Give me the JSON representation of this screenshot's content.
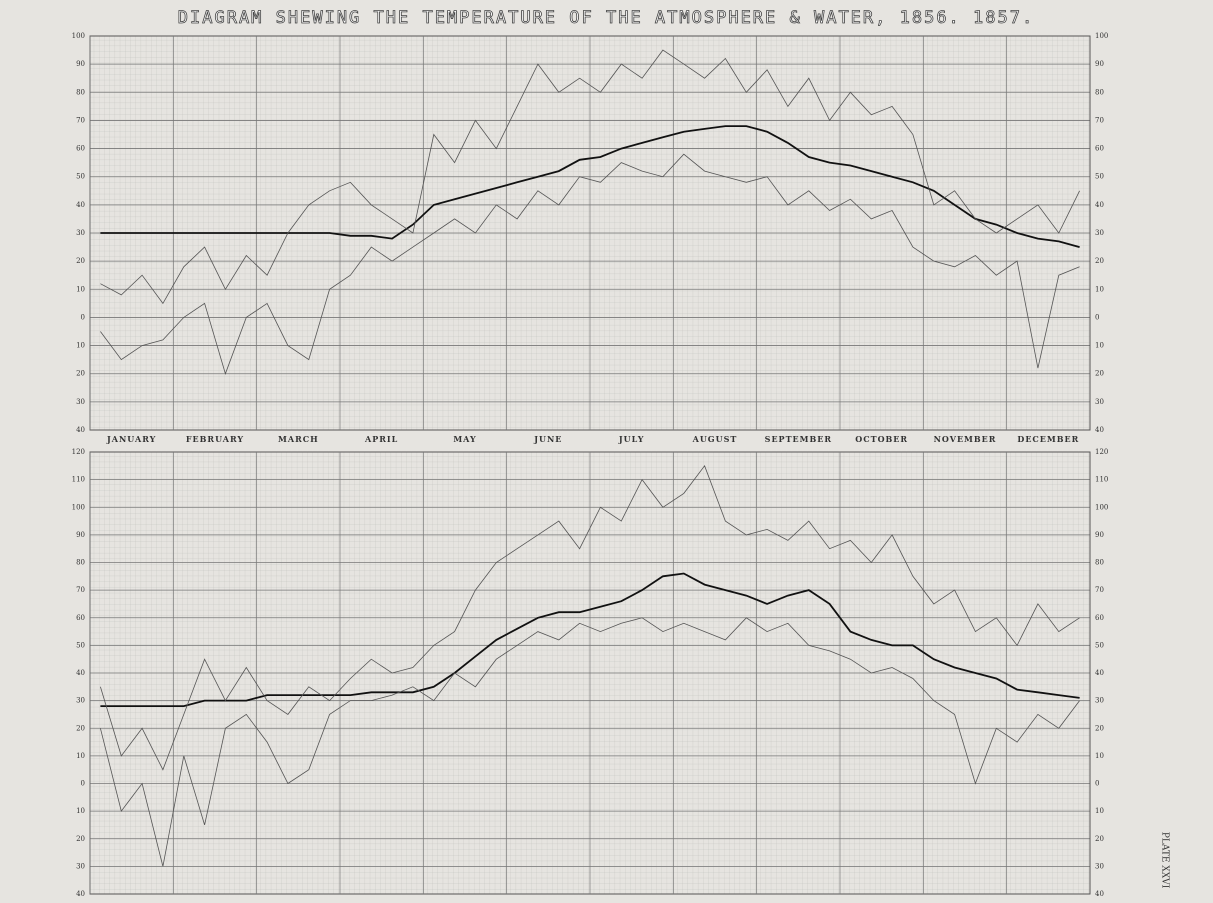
{
  "chart_data": [
    {
      "type": "line",
      "title": "DIAGRAM SHEWING THE TEMPERATURE OF THE ATMOSPHERE & WATER, 1856. 1857.",
      "categories": [
        "JANUARY",
        null,
        null,
        null,
        "FEBRUARY",
        null,
        null,
        null,
        "MARCH",
        null,
        null,
        null,
        "APRIL",
        null,
        null,
        null,
        "MAY",
        null,
        null,
        null,
        "JUNE",
        null,
        null,
        null,
        "JULY",
        null,
        null,
        null,
        "AUGUST",
        null,
        null,
        null,
        "SEPTEMBER",
        null,
        null,
        null,
        "OCTOBER",
        null,
        null,
        null,
        "NOVEMBER",
        null,
        null,
        null,
        "DECEMBER",
        null,
        null,
        null
      ],
      "ylim": [
        -40,
        100
      ],
      "yticks": [
        100,
        90,
        80,
        70,
        60,
        50,
        40,
        30,
        20,
        10,
        0,
        {
          "value": -10,
          "label": "10"
        },
        {
          "value": -20,
          "label": "20"
        },
        {
          "value": -30,
          "label": "30"
        },
        {
          "value": -40,
          "label": "40"
        }
      ],
      "grid": true,
      "series": [
        {
          "color": "#111",
          "values": [
            30,
            30,
            30,
            30,
            30,
            30,
            30,
            30,
            30,
            30,
            30,
            30,
            29,
            29,
            28,
            33,
            40,
            42,
            44,
            46,
            48,
            50,
            52,
            56,
            57,
            60,
            62,
            64,
            66,
            67,
            68,
            68,
            66,
            62,
            57,
            55,
            54,
            52,
            50,
            48,
            45,
            40,
            35,
            33,
            30,
            28,
            27,
            25
          ]
        },
        {
          "color": "#555",
          "values": [
            12,
            8,
            15,
            5,
            18,
            25,
            10,
            22,
            15,
            30,
            40,
            45,
            48,
            40,
            35,
            30,
            65,
            55,
            70,
            60,
            75,
            90,
            80,
            85,
            80,
            90,
            85,
            95,
            90,
            85,
            92,
            80,
            88,
            75,
            85,
            70,
            80,
            72,
            75,
            65,
            40,
            45,
            35,
            30,
            35,
            40,
            30,
            45
          ]
        },
        {
          "color": "#555",
          "values": [
            -5,
            -15,
            -10,
            -8,
            0,
            5,
            -20,
            0,
            5,
            -10,
            -15,
            10,
            15,
            25,
            20,
            25,
            30,
            35,
            30,
            40,
            35,
            45,
            40,
            50,
            48,
            55,
            52,
            50,
            58,
            52,
            50,
            48,
            50,
            40,
            45,
            38,
            42,
            35,
            38,
            25,
            20,
            18,
            22,
            15,
            20,
            -18,
            15,
            18
          ]
        }
      ]
    },
    {
      "type": "line",
      "annotation": "PLATE XXVI",
      "categories": [
        null,
        null,
        null,
        null,
        null,
        null,
        null,
        null,
        null,
        null,
        null,
        null,
        null,
        null,
        null,
        null,
        null,
        null,
        null,
        null,
        null,
        null,
        null,
        null,
        null,
        null,
        null,
        null,
        null,
        null,
        null,
        null,
        null,
        null,
        null,
        null,
        null,
        null,
        null,
        null,
        null,
        null,
        null,
        null,
        null,
        null,
        null,
        null
      ],
      "ylim": [
        -40,
        120
      ],
      "yticks": [
        120,
        110,
        100,
        90,
        80,
        70,
        60,
        50,
        40,
        30,
        20,
        10,
        0,
        {
          "value": -10,
          "label": "10"
        },
        {
          "value": -20,
          "label": "20"
        },
        {
          "value": -30,
          "label": "30"
        },
        {
          "value": -40,
          "label": "40"
        }
      ],
      "grid": true,
      "series": [
        {
          "color": "#111",
          "values": [
            28,
            28,
            28,
            28,
            28,
            30,
            30,
            30,
            32,
            32,
            32,
            32,
            32,
            33,
            33,
            33,
            35,
            40,
            46,
            52,
            56,
            60,
            62,
            62,
            64,
            66,
            70,
            75,
            76,
            72,
            70,
            68,
            65,
            68,
            70,
            65,
            55,
            52,
            50,
            50,
            45,
            42,
            40,
            38,
            34,
            33,
            32,
            31
          ]
        },
        {
          "color": "#555",
          "values": [
            35,
            10,
            20,
            5,
            25,
            45,
            30,
            42,
            30,
            25,
            35,
            30,
            38,
            45,
            40,
            42,
            50,
            55,
            70,
            80,
            85,
            90,
            95,
            85,
            100,
            95,
            110,
            100,
            105,
            115,
            95,
            90,
            92,
            88,
            95,
            85,
            88,
            80,
            90,
            75,
            65,
            70,
            55,
            60,
            50,
            65,
            55,
            60
          ]
        },
        {
          "color": "#555",
          "values": [
            20,
            -10,
            0,
            -30,
            10,
            -15,
            20,
            25,
            15,
            0,
            5,
            25,
            30,
            30,
            32,
            35,
            30,
            40,
            35,
            45,
            50,
            55,
            52,
            58,
            55,
            58,
            60,
            55,
            58,
            55,
            52,
            60,
            55,
            58,
            50,
            48,
            45,
            40,
            42,
            38,
            30,
            25,
            0,
            20,
            15,
            25,
            20,
            30
          ]
        }
      ]
    }
  ]
}
